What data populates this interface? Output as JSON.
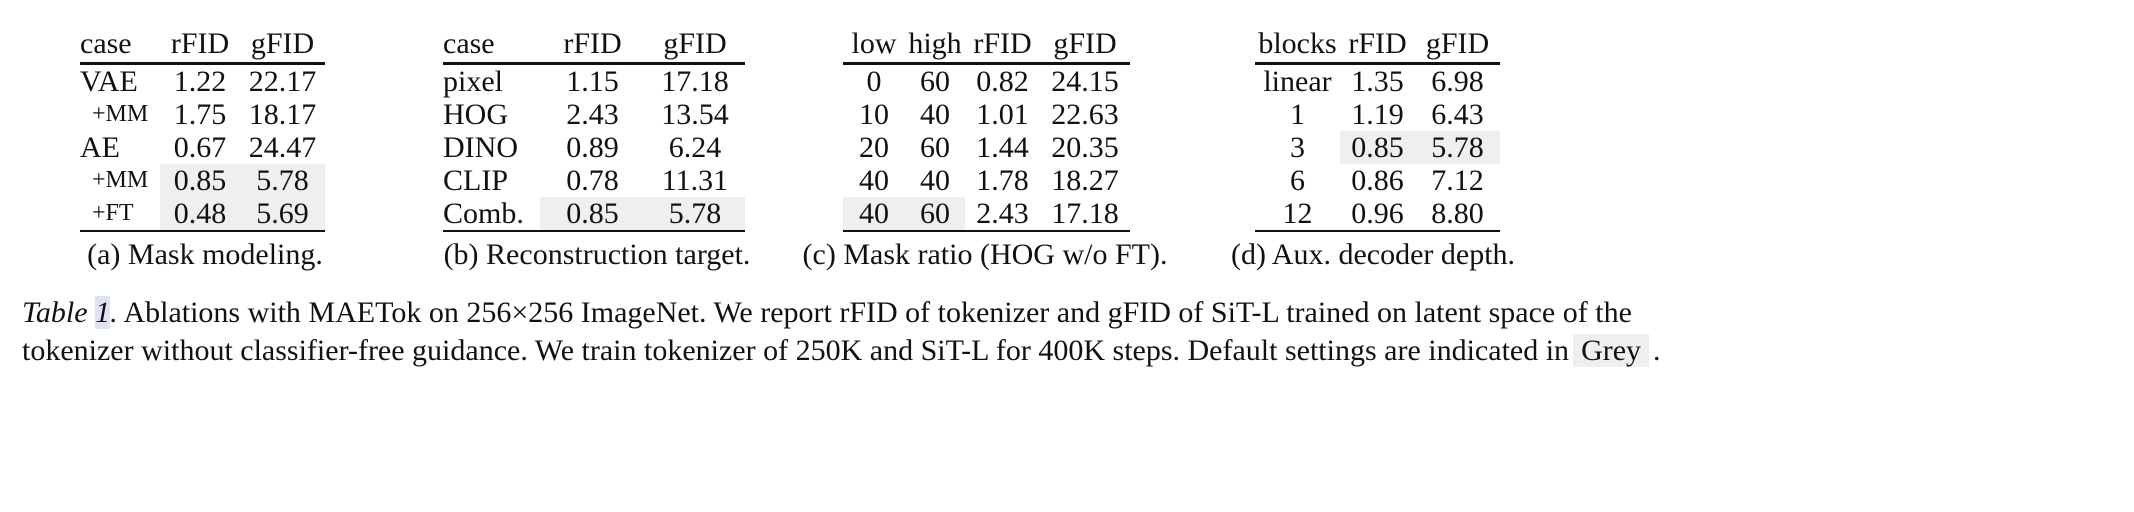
{
  "tables": [
    {
      "header": [
        "case",
        "rFID",
        "gFID"
      ],
      "rows": [
        [
          "VAE",
          "1.22",
          "22.17"
        ],
        [
          "+MM",
          "1.75",
          "18.17"
        ],
        [
          "AE",
          "0.67",
          "24.47"
        ],
        [
          "+MM",
          "0.85",
          "5.78"
        ],
        [
          "+FT",
          "0.48",
          "5.69"
        ]
      ],
      "caption": "(a)  Mask modeling."
    },
    {
      "header": [
        "case",
        "rFID",
        "gFID"
      ],
      "rows": [
        [
          "pixel",
          "1.15",
          "17.18"
        ],
        [
          "HOG",
          "2.43",
          "13.54"
        ],
        [
          "DINO",
          "0.89",
          "6.24"
        ],
        [
          "CLIP",
          "0.78",
          "11.31"
        ],
        [
          "Comb.",
          "0.85",
          "5.78"
        ]
      ],
      "caption": "(b)  Reconstruction target."
    },
    {
      "header": [
        "low",
        "high",
        "rFID",
        "gFID"
      ],
      "rows": [
        [
          "0",
          "60",
          "0.82",
          "24.15"
        ],
        [
          "10",
          "40",
          "1.01",
          "22.63"
        ],
        [
          "20",
          "60",
          "1.44",
          "20.35"
        ],
        [
          "40",
          "40",
          "1.78",
          "18.27"
        ],
        [
          "40",
          "60",
          "2.43",
          "17.18"
        ]
      ],
      "caption": "(c)  Mask ratio (HOG w/o FT)."
    },
    {
      "header": [
        "blocks",
        "rFID",
        "gFID"
      ],
      "rows": [
        [
          "linear",
          "1.35",
          "6.98"
        ],
        [
          "1",
          "1.19",
          "6.43"
        ],
        [
          "3",
          "0.85",
          "5.78"
        ],
        [
          "6",
          "0.86",
          "7.12"
        ],
        [
          "12",
          "0.96",
          "8.80"
        ]
      ],
      "caption": "(d)  Aux. decoder depth."
    }
  ],
  "caption": {
    "label_prefix": "Table ",
    "label_number": "1",
    "label_suffix": ".",
    "line1": " Ablations with MAETok on 256×256 ImageNet. We report rFID of tokenizer and gFID of SiT-L trained on latent space of the",
    "line2": "tokenizer without classifier-free guidance. We train tokenizer of 250K and SiT-L for 400K steps. Default settings are indicated in",
    "grey": "Grey",
    "end": "."
  }
}
